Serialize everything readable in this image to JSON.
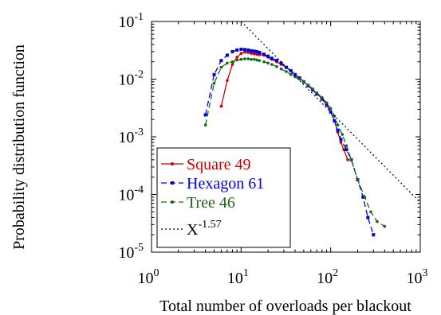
{
  "chart_data": {
    "type": "scatter",
    "xlabel": "Total number of overloads per blackout",
    "ylabel": "Probability distribution function",
    "xscale": "log",
    "yscale": "log",
    "xlim": [
      1,
      1000
    ],
    "ylim": [
      1e-05,
      0.1
    ],
    "x_ticks": [
      {
        "base": "10",
        "exp": "0"
      },
      {
        "base": "10",
        "exp": "1"
      },
      {
        "base": "10",
        "exp": "2"
      },
      {
        "base": "10",
        "exp": "3"
      }
    ],
    "y_ticks": [
      {
        "base": "10",
        "exp": "-5"
      },
      {
        "base": "10",
        "exp": "-4"
      },
      {
        "base": "10",
        "exp": "-3"
      },
      {
        "base": "10",
        "exp": "-2"
      },
      {
        "base": "10",
        "exp": "-1"
      }
    ],
    "legend_position": "bottom-left",
    "series": [
      {
        "name": "Square 49",
        "color": "#cc0000",
        "line": "solid",
        "marker": "dot",
        "points": [
          [
            6,
            0.0034
          ],
          [
            7,
            0.0095
          ],
          [
            8,
            0.018
          ],
          [
            9,
            0.024
          ],
          [
            10,
            0.028
          ],
          [
            11,
            0.0295
          ],
          [
            12,
            0.029
          ],
          [
            13,
            0.028
          ],
          [
            14,
            0.0275
          ],
          [
            15,
            0.027
          ],
          [
            16,
            0.0265
          ],
          [
            18,
            0.026
          ],
          [
            20,
            0.024
          ],
          [
            22,
            0.022
          ],
          [
            25,
            0.02
          ],
          [
            28,
            0.018
          ],
          [
            32,
            0.016
          ],
          [
            36,
            0.014
          ],
          [
            40,
            0.012
          ],
          [
            45,
            0.0105
          ],
          [
            50,
            0.009
          ],
          [
            56,
            0.0078
          ],
          [
            63,
            0.0066
          ],
          [
            70,
            0.0056
          ],
          [
            80,
            0.0046
          ],
          [
            90,
            0.0036
          ],
          [
            100,
            0.0027
          ],
          [
            110,
            0.0019
          ],
          [
            120,
            0.0012
          ],
          [
            130,
            0.0008
          ],
          [
            140,
            0.0006
          ],
          [
            155,
            0.0004
          ]
        ]
      },
      {
        "name": "Hexagon 61",
        "color": "#0000dd",
        "line": "dashed",
        "marker": "square",
        "points": [
          [
            4,
            0.0024
          ],
          [
            5,
            0.012
          ],
          [
            6,
            0.021
          ],
          [
            7,
            0.026
          ],
          [
            8,
            0.03
          ],
          [
            9,
            0.032
          ],
          [
            10,
            0.033
          ],
          [
            11,
            0.0325
          ],
          [
            12,
            0.032
          ],
          [
            13,
            0.031
          ],
          [
            14,
            0.0305
          ],
          [
            15,
            0.03
          ],
          [
            16,
            0.029
          ],
          [
            18,
            0.027
          ],
          [
            20,
            0.025
          ],
          [
            22,
            0.023
          ],
          [
            25,
            0.021
          ],
          [
            28,
            0.019
          ],
          [
            32,
            0.016
          ],
          [
            36,
            0.014
          ],
          [
            40,
            0.012
          ],
          [
            45,
            0.0105
          ],
          [
            50,
            0.009
          ],
          [
            56,
            0.0077
          ],
          [
            63,
            0.0065
          ],
          [
            70,
            0.0055
          ],
          [
            80,
            0.0045
          ],
          [
            90,
            0.0036
          ],
          [
            100,
            0.0027
          ],
          [
            110,
            0.0019
          ],
          [
            120,
            0.0013
          ],
          [
            130,
            0.0009
          ],
          [
            150,
            0.0006
          ],
          [
            170,
            0.0004
          ],
          [
            200,
            0.00018
          ],
          [
            230,
            9e-05
          ],
          [
            260,
            4e-05
          ],
          [
            300,
            2e-05
          ]
        ]
      },
      {
        "name": "Tree 46",
        "color": "#1a661a",
        "line": "dashed",
        "marker": "dot",
        "points": [
          [
            4,
            0.0016
          ],
          [
            5,
            0.0085
          ],
          [
            6,
            0.016
          ],
          [
            7,
            0.019
          ],
          [
            8,
            0.02
          ],
          [
            9,
            0.0215
          ],
          [
            10,
            0.022
          ],
          [
            11,
            0.0225
          ],
          [
            12,
            0.0225
          ],
          [
            13,
            0.022
          ],
          [
            14,
            0.022
          ],
          [
            15,
            0.0215
          ],
          [
            16,
            0.021
          ],
          [
            18,
            0.02
          ],
          [
            20,
            0.019
          ],
          [
            22,
            0.018
          ],
          [
            25,
            0.0165
          ],
          [
            28,
            0.015
          ],
          [
            32,
            0.0135
          ],
          [
            36,
            0.012
          ],
          [
            40,
            0.011
          ],
          [
            45,
            0.01
          ],
          [
            50,
            0.009
          ],
          [
            56,
            0.0079
          ],
          [
            63,
            0.0068
          ],
          [
            70,
            0.0058
          ],
          [
            80,
            0.0048
          ],
          [
            90,
            0.0039
          ],
          [
            100,
            0.0031
          ],
          [
            110,
            0.0023
          ],
          [
            120,
            0.0016
          ],
          [
            135,
            0.0011
          ],
          [
            150,
            0.0007
          ],
          [
            170,
            0.0004
          ],
          [
            200,
            0.00018
          ],
          [
            240,
            9e-05
          ],
          [
            280,
            5e-05
          ],
          [
            330,
            3.4e-05
          ],
          [
            400,
            2.8e-05
          ]
        ]
      },
      {
        "name": "X",
        "name_sup": "-1.57",
        "color": "#000000",
        "line": "dotted",
        "marker": "none",
        "points": [
          [
            10,
            0.1
          ],
          [
            1000,
            7.27e-05
          ]
        ]
      }
    ]
  }
}
